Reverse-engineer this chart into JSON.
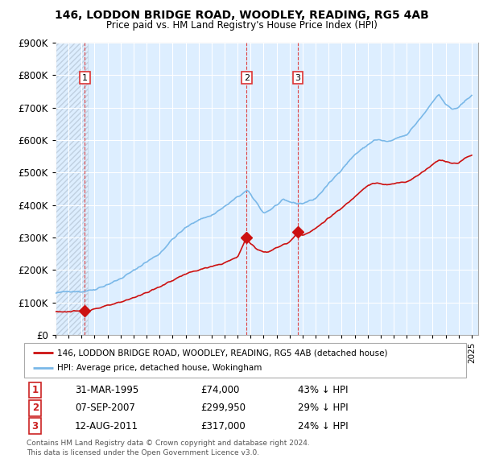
{
  "title": "146, LODDON BRIDGE ROAD, WOODLEY, READING, RG5 4AB",
  "subtitle": "Price paid vs. HM Land Registry's House Price Index (HPI)",
  "legend_line1": "146, LODDON BRIDGE ROAD, WOODLEY, READING, RG5 4AB (detached house)",
  "legend_line2": "HPI: Average price, detached house, Wokingham",
  "footer1": "Contains HM Land Registry data © Crown copyright and database right 2024.",
  "footer2": "This data is licensed under the Open Government Licence v3.0.",
  "transactions": [
    {
      "num": 1,
      "date": "31-MAR-1995",
      "price": "£74,000",
      "pct": "43% ↓ HPI",
      "year": 1995.25
    },
    {
      "num": 2,
      "date": "07-SEP-2007",
      "price": "£299,950",
      "pct": "29% ↓ HPI",
      "year": 2007.69
    },
    {
      "num": 3,
      "date": "12-AUG-2011",
      "price": "£317,000",
      "pct": "24% ↓ HPI",
      "year": 2011.62
    }
  ],
  "transaction_prices": [
    74000,
    299950,
    317000
  ],
  "hpi_color": "#7ab8e8",
  "price_color": "#cc1111",
  "vline_color": "#dd3333",
  "bg_color": "#ddeeff",
  "hatch_color": "#c0d0e0",
  "ylim": [
    0,
    900000
  ],
  "yticks": [
    0,
    100000,
    200000,
    300000,
    400000,
    500000,
    600000,
    700000,
    800000,
    900000
  ],
  "xlim_start": 1993.0,
  "xlim_end": 2025.5,
  "xticks": [
    1993,
    1994,
    1995,
    1996,
    1997,
    1998,
    1999,
    2000,
    2001,
    2002,
    2003,
    2004,
    2005,
    2006,
    2007,
    2008,
    2009,
    2010,
    2011,
    2012,
    2013,
    2014,
    2015,
    2016,
    2017,
    2018,
    2019,
    2020,
    2021,
    2022,
    2023,
    2024,
    2025
  ]
}
